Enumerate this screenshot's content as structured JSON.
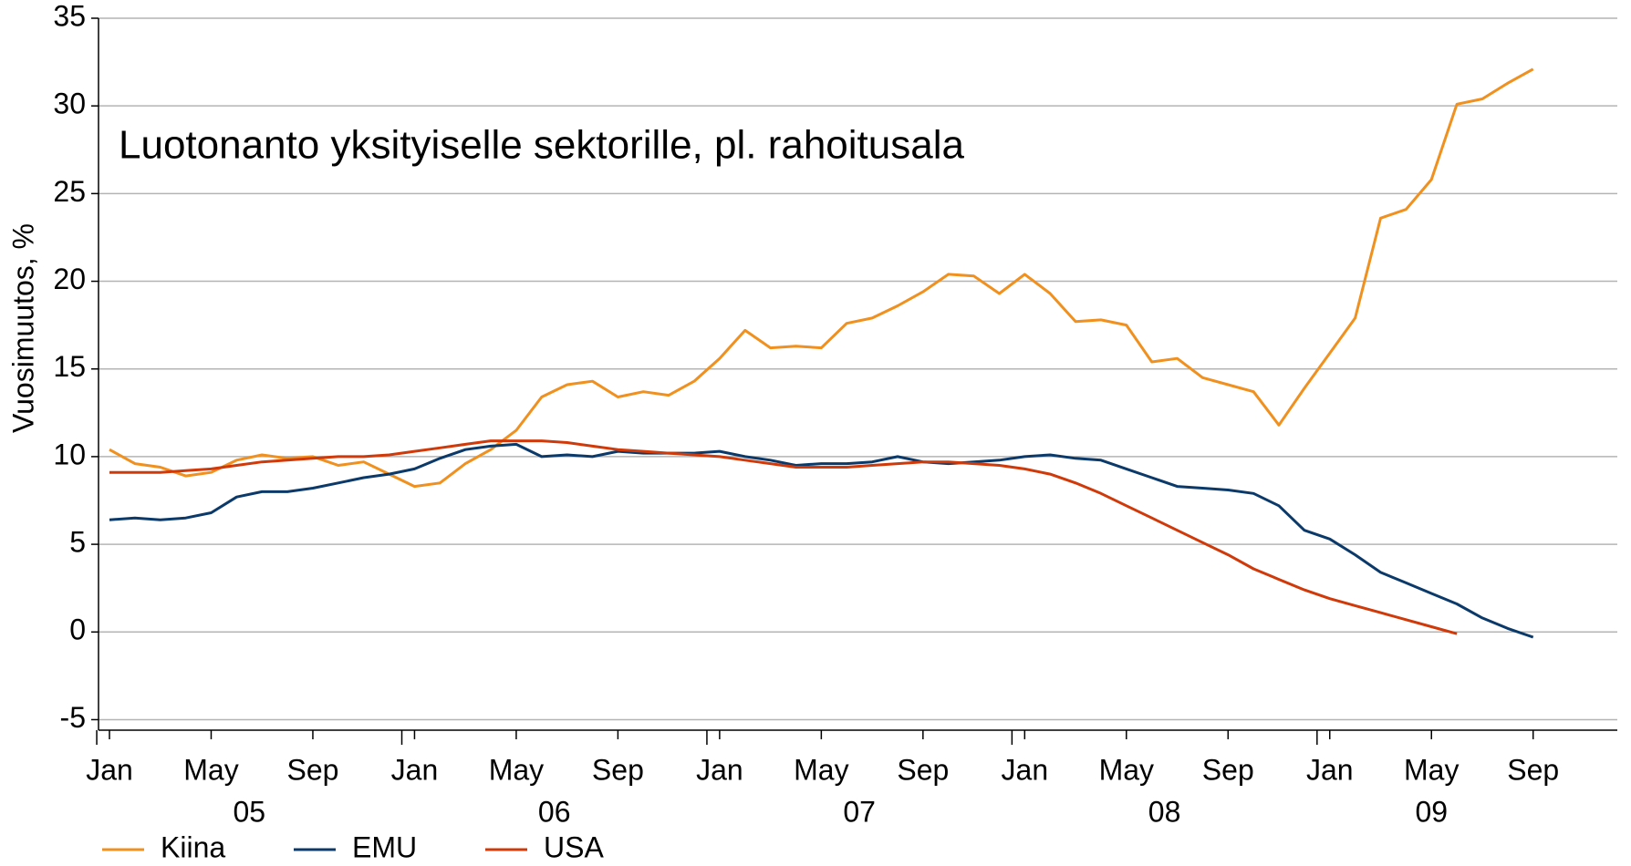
{
  "chart_data": {
    "type": "line",
    "annotation": "Luotonanto yksityiselle sektorille, pl. rahoitusala",
    "y_label": "Vuosimuutos, %",
    "categories": [
      "Jan",
      null,
      null,
      null,
      "May",
      null,
      null,
      null,
      "Sep",
      null,
      null,
      null,
      "Jan",
      null,
      null,
      null,
      "May",
      null,
      null,
      null,
      "Sep",
      null,
      null,
      null,
      "Jan",
      null,
      null,
      null,
      "May",
      null,
      null,
      null,
      "Sep",
      null,
      null,
      null,
      "Jan",
      null,
      null,
      null,
      "May",
      null,
      null,
      null,
      "Sep",
      null,
      null,
      null,
      "Jan",
      null,
      null,
      null,
      "May",
      null,
      null,
      null,
      "Sep"
    ],
    "year_labels": [
      "05",
      "06",
      "07",
      "08",
      "09"
    ],
    "ylim": [
      -5.6,
      35
    ],
    "yticks": [
      -5,
      0,
      5,
      10,
      15,
      20,
      25,
      30,
      35
    ],
    "grid": true,
    "legend": "bottom-left",
    "series": [
      {
        "name": "Kiina",
        "color": "#f0901e",
        "values": [
          10.4,
          9.6,
          9.4,
          8.9,
          9.1,
          9.8,
          10.1,
          9.9,
          10.0,
          9.5,
          9.7,
          9.0,
          8.3,
          8.5,
          9.6,
          10.4,
          11.5,
          13.4,
          14.1,
          14.3,
          13.4,
          13.7,
          13.5,
          14.3,
          15.6,
          17.2,
          16.2,
          16.3,
          16.2,
          17.6,
          17.9,
          18.6,
          19.4,
          20.4,
          20.3,
          19.3,
          20.4,
          19.3,
          17.7,
          17.8,
          17.5,
          15.4,
          15.6,
          14.5,
          14.1,
          13.7,
          11.8,
          13.9,
          15.9,
          17.9,
          23.6,
          24.1,
          25.8,
          30.1,
          30.4,
          31.3,
          32.1
        ]
      },
      {
        "name": "EMU",
        "color": "#0b3a6a",
        "values": [
          6.4,
          6.5,
          6.4,
          6.5,
          6.8,
          7.7,
          8.0,
          8.0,
          8.2,
          8.5,
          8.8,
          9.0,
          9.3,
          9.9,
          10.4,
          10.6,
          10.7,
          10.0,
          10.1,
          10.0,
          10.3,
          10.2,
          10.2,
          10.2,
          10.3,
          10.0,
          9.8,
          9.5,
          9.6,
          9.6,
          9.7,
          10.0,
          9.7,
          9.6,
          9.7,
          9.8,
          10.0,
          10.1,
          9.9,
          9.8,
          9.3,
          8.8,
          8.3,
          8.2,
          8.1,
          7.9,
          7.2,
          5.8,
          5.3,
          4.4,
          3.4,
          2.8,
          2.2,
          1.6,
          0.8,
          0.2,
          -0.3
        ]
      },
      {
        "name": "USA",
        "color": "#d03a0a",
        "values": [
          9.1,
          9.1,
          9.1,
          9.2,
          9.3,
          9.5,
          9.7,
          9.8,
          9.9,
          10.0,
          10.0,
          10.1,
          10.3,
          10.5,
          10.7,
          10.9,
          10.9,
          10.9,
          10.8,
          10.6,
          10.4,
          10.3,
          10.2,
          10.1,
          10.0,
          9.8,
          9.6,
          9.4,
          9.4,
          9.4,
          9.5,
          9.6,
          9.7,
          9.7,
          9.6,
          9.5,
          9.3,
          9.0,
          8.5,
          7.9,
          7.2,
          6.5,
          5.8,
          5.1,
          4.4,
          3.6,
          3.0,
          2.4,
          1.9,
          1.5,
          1.1,
          0.7,
          0.3,
          -0.1,
          null,
          null,
          null
        ]
      }
    ]
  }
}
